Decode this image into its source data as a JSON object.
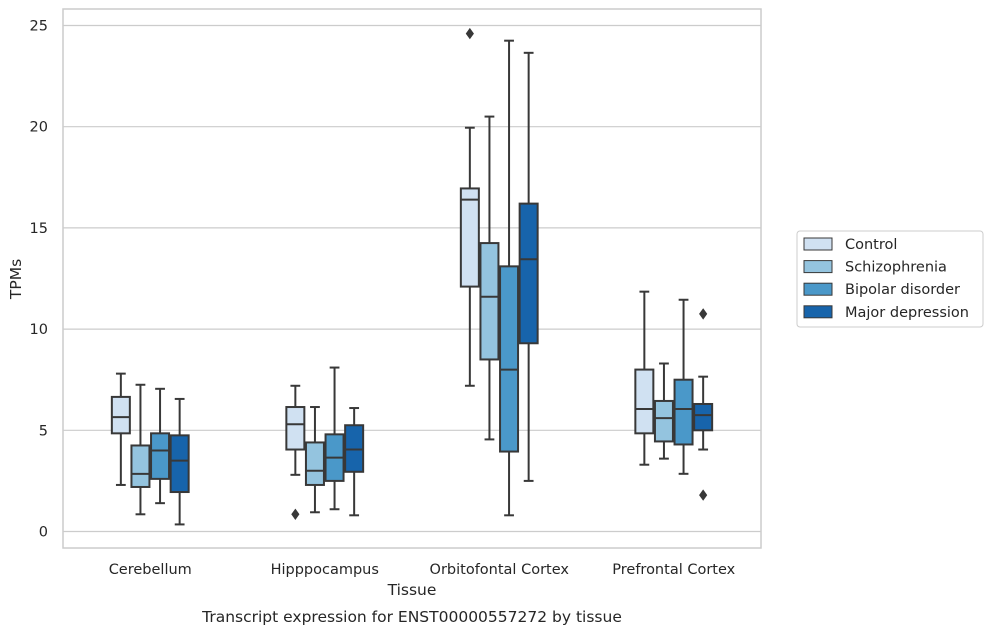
{
  "chart_data": {
    "type": "box",
    "title": "Transcript expression for ENST00000557272 by tissue",
    "xlabel": "Tissue",
    "ylabel": "TPMs",
    "ylim": [
      -0.8,
      25.8
    ],
    "yticks": [
      0,
      5,
      10,
      15,
      20,
      25
    ],
    "grid": true,
    "legend_position": "right",
    "categories": [
      "Cerebellum",
      "Hipppocampus",
      "Orbitofontal Cortex",
      "Prefrontal Cortex"
    ],
    "series": [
      {
        "name": "Control",
        "color": "#d0e1f2",
        "boxes": [
          {
            "whisker_low": 2.3,
            "q1": 4.85,
            "median": 5.65,
            "q3": 6.65,
            "whisker_high": 7.8,
            "outliers": []
          },
          {
            "whisker_low": 2.8,
            "q1": 4.05,
            "median": 5.3,
            "q3": 6.15,
            "whisker_high": 7.2,
            "outliers": [
              0.85
            ]
          },
          {
            "whisker_low": 7.2,
            "q1": 12.1,
            "median": 16.4,
            "q3": 16.95,
            "whisker_high": 19.95,
            "outliers": [
              24.6
            ]
          },
          {
            "whisker_low": 3.3,
            "q1": 4.85,
            "median": 6.05,
            "q3": 8.0,
            "whisker_high": 11.85,
            "outliers": []
          }
        ]
      },
      {
        "name": "Schizophrenia",
        "color": "#94c4df",
        "boxes": [
          {
            "whisker_low": 0.85,
            "q1": 2.2,
            "median": 2.85,
            "q3": 4.25,
            "whisker_high": 7.25,
            "outliers": []
          },
          {
            "whisker_low": 0.95,
            "q1": 2.3,
            "median": 3.0,
            "q3": 4.4,
            "whisker_high": 6.15,
            "outliers": []
          },
          {
            "whisker_low": 4.55,
            "q1": 8.5,
            "median": 11.6,
            "q3": 14.25,
            "whisker_high": 20.5,
            "outliers": []
          },
          {
            "whisker_low": 3.6,
            "q1": 4.45,
            "median": 5.6,
            "q3": 6.45,
            "whisker_high": 8.3,
            "outliers": []
          }
        ]
      },
      {
        "name": "Bipolar disorder",
        "color": "#4a98c9",
        "boxes": [
          {
            "whisker_low": 1.4,
            "q1": 2.6,
            "median": 4.0,
            "q3": 4.85,
            "whisker_high": 7.05,
            "outliers": []
          },
          {
            "whisker_low": 1.1,
            "q1": 2.5,
            "median": 3.65,
            "q3": 4.8,
            "whisker_high": 8.1,
            "outliers": []
          },
          {
            "whisker_low": 0.8,
            "q1": 3.95,
            "median": 8.0,
            "q3": 13.1,
            "whisker_high": 24.25,
            "outliers": []
          },
          {
            "whisker_low": 2.85,
            "q1": 4.3,
            "median": 6.05,
            "q3": 7.5,
            "whisker_high": 11.45,
            "outliers": []
          }
        ]
      },
      {
        "name": "Major depression",
        "color": "#1764ab",
        "boxes": [
          {
            "whisker_low": 0.35,
            "q1": 1.95,
            "median": 3.5,
            "q3": 4.75,
            "whisker_high": 6.55,
            "outliers": []
          },
          {
            "whisker_low": 0.8,
            "q1": 2.95,
            "median": 4.05,
            "q3": 5.25,
            "whisker_high": 6.1,
            "outliers": []
          },
          {
            "whisker_low": 2.5,
            "q1": 9.3,
            "median": 13.45,
            "q3": 16.2,
            "whisker_high": 23.65,
            "outliers": []
          },
          {
            "whisker_low": 4.05,
            "q1": 5.0,
            "median": 5.75,
            "q3": 6.3,
            "whisker_high": 7.65,
            "outliers": [
              10.75,
              1.8
            ]
          }
        ]
      }
    ]
  }
}
